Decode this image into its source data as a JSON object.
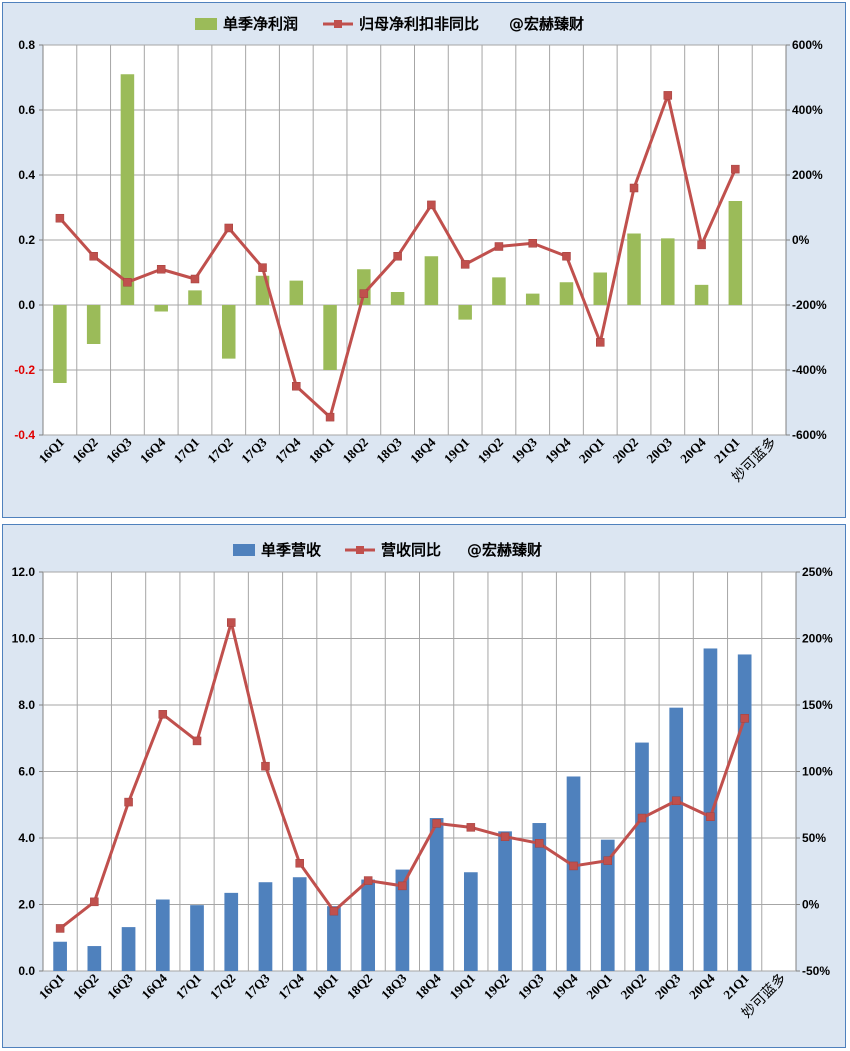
{
  "chart_data": [
    {
      "type": "bar+line",
      "categories": [
        "16Q1",
        "16Q2",
        "16Q3",
        "16Q4",
        "17Q1",
        "17Q2",
        "17Q3",
        "17Q4",
        "18Q1",
        "18Q2",
        "18Q3",
        "18Q4",
        "19Q1",
        "19Q2",
        "19Q3",
        "19Q4",
        "20Q1",
        "20Q2",
        "20Q3",
        "20Q4",
        "21Q1"
      ],
      "extra_category_label": "妙可蓝多",
      "series": [
        {
          "name": "单季净利润",
          "type": "bar",
          "axis": "left",
          "color": "#9bbb59",
          "values": [
            -0.24,
            -0.12,
            0.71,
            -0.02,
            0.045,
            -0.165,
            0.09,
            0.075,
            -0.2,
            0.11,
            0.04,
            0.15,
            -0.045,
            0.085,
            0.035,
            0.07,
            0.1,
            0.22,
            0.205,
            0.062,
            0.32
          ]
        },
        {
          "name": "归母净利扣非同比",
          "type": "line",
          "axis": "right",
          "color": "#c0504d",
          "values": [
            67,
            -50,
            -130,
            -90,
            -120,
            37,
            -85,
            -450,
            -545,
            -165,
            -50,
            108,
            -75,
            -20,
            -10,
            -50,
            -315,
            160,
            445,
            -15,
            218
          ]
        }
      ],
      "watermark": "@宏赫臻财",
      "left_axis": {
        "min": -0.4,
        "max": 0.8,
        "step": 0.2,
        "ticks": [
          "0.8",
          "0.6",
          "0.4",
          "0.2",
          "0.0",
          "-0.2",
          "-0.4"
        ]
      },
      "right_axis": {
        "min": -600,
        "max": 600,
        "step": 200,
        "ticks": [
          "600%",
          "400%",
          "200%",
          "0%",
          "-200%",
          "-400%",
          "-600%"
        ]
      },
      "grid": true,
      "legend_position": "top"
    },
    {
      "type": "bar+line",
      "categories": [
        "16Q1",
        "16Q2",
        "16Q3",
        "16Q4",
        "17Q1",
        "17Q2",
        "17Q3",
        "17Q4",
        "18Q1",
        "18Q2",
        "18Q3",
        "18Q4",
        "19Q1",
        "19Q2",
        "19Q3",
        "19Q4",
        "20Q1",
        "20Q2",
        "20Q3",
        "20Q4",
        "21Q1"
      ],
      "extra_category_label": "妙可蓝多",
      "series": [
        {
          "name": "单季营收",
          "type": "bar",
          "axis": "left",
          "color": "#4f81bd",
          "values": [
            0.88,
            0.75,
            1.32,
            2.15,
            1.98,
            2.35,
            2.67,
            2.82,
            1.95,
            2.75,
            3.05,
            4.6,
            2.97,
            4.2,
            4.45,
            5.85,
            3.95,
            6.87,
            7.92,
            9.7,
            9.52
          ]
        },
        {
          "name": "营收同比",
          "type": "line",
          "axis": "right",
          "color": "#c0504d",
          "values": [
            -18,
            2,
            77,
            143,
            123,
            212,
            104,
            31,
            -5,
            18,
            14,
            61,
            58,
            51,
            46,
            29,
            33,
            65,
            78,
            66,
            140
          ]
        }
      ],
      "watermark": "@宏赫臻财",
      "left_axis": {
        "min": 0,
        "max": 12,
        "step": 2,
        "ticks": [
          "12.0",
          "10.0",
          "8.0",
          "6.0",
          "4.0",
          "2.0",
          "0.0"
        ]
      },
      "right_axis": {
        "min": -50,
        "max": 250,
        "step": 50,
        "ticks": [
          "250%",
          "200%",
          "150%",
          "100%",
          "50%",
          "0%",
          "-50%"
        ]
      },
      "grid": true,
      "legend_position": "top"
    }
  ]
}
